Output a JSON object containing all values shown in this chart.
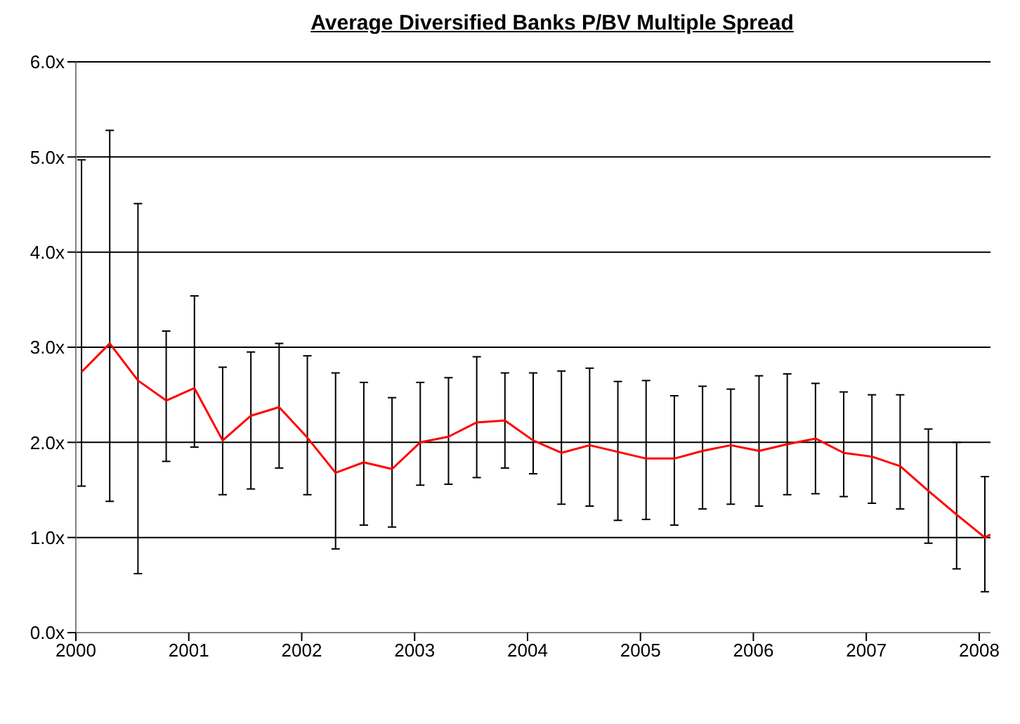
{
  "chart_data": {
    "type": "line",
    "title": "Average Diversified Banks P/BV Multiple Spread",
    "x": [
      2000.05,
      2000.3,
      2000.55,
      2000.8,
      2001.05,
      2001.3,
      2001.55,
      2001.8,
      2002.05,
      2002.3,
      2002.55,
      2002.8,
      2003.05,
      2003.3,
      2003.55,
      2003.8,
      2004.05,
      2004.3,
      2004.55,
      2004.8,
      2005.05,
      2005.3,
      2005.55,
      2005.8,
      2006.05,
      2006.3,
      2006.55,
      2006.8,
      2007.05,
      2007.3,
      2007.55,
      2007.8,
      2008.05,
      2008.1
    ],
    "series": [
      {
        "color": "#ff0000",
        "values": [
          2.74,
          3.04,
          2.65,
          2.44,
          2.57,
          2.02,
          2.28,
          2.37,
          2.05,
          1.68,
          1.79,
          1.72,
          2.0,
          2.06,
          2.21,
          2.23,
          2.02,
          1.89,
          1.97,
          1.9,
          1.83,
          1.83,
          1.91,
          1.97,
          1.91,
          1.98,
          2.04,
          1.89,
          1.85,
          1.75,
          1.49,
          1.24,
          1.0,
          1.03
        ],
        "errors": [
          [
            1.54,
            4.97
          ],
          [
            1.38,
            5.28
          ],
          [
            0.62,
            4.51
          ],
          [
            1.8,
            3.17
          ],
          [
            1.95,
            3.54
          ],
          [
            1.45,
            2.79
          ],
          [
            1.51,
            2.95
          ],
          [
            1.73,
            3.04
          ],
          [
            1.45,
            2.91
          ],
          [
            0.88,
            2.73
          ],
          [
            1.13,
            2.63
          ],
          [
            1.11,
            2.47
          ],
          [
            1.55,
            2.63
          ],
          [
            1.56,
            2.68
          ],
          [
            1.63,
            2.9
          ],
          [
            1.73,
            2.73
          ],
          [
            1.67,
            2.73
          ],
          [
            1.35,
            2.75
          ],
          [
            1.33,
            2.78
          ],
          [
            1.18,
            2.64
          ],
          [
            1.19,
            2.65
          ],
          [
            1.13,
            2.49
          ],
          [
            1.3,
            2.59
          ],
          [
            1.35,
            2.56
          ],
          [
            1.33,
            2.7
          ],
          [
            1.45,
            2.72
          ],
          [
            1.46,
            2.62
          ],
          [
            1.43,
            2.53
          ],
          [
            1.36,
            2.5
          ],
          [
            1.3,
            2.5
          ],
          [
            0.94,
            2.14
          ],
          [
            0.67,
            2.0
          ],
          [
            0.43,
            1.64
          ],
          null
        ]
      }
    ],
    "xlim": [
      2000,
      2008.1
    ],
    "xticks": [
      2000,
      2001,
      2002,
      2003,
      2004,
      2005,
      2006,
      2007,
      2008
    ],
    "ylim": [
      0,
      6
    ],
    "yticks": [
      {
        "value": 0,
        "label": "0.0x"
      },
      {
        "value": 1,
        "label": "1.0x"
      },
      {
        "value": 2,
        "label": "2.0x"
      },
      {
        "value": 3,
        "label": "3.0x"
      },
      {
        "value": 4,
        "label": "4.0x"
      },
      {
        "value": 5,
        "label": "5.0x"
      },
      {
        "value": 6,
        "label": "6.0x"
      }
    ],
    "grid": "y",
    "legend": false,
    "marker": "none",
    "line_style": "solid"
  }
}
